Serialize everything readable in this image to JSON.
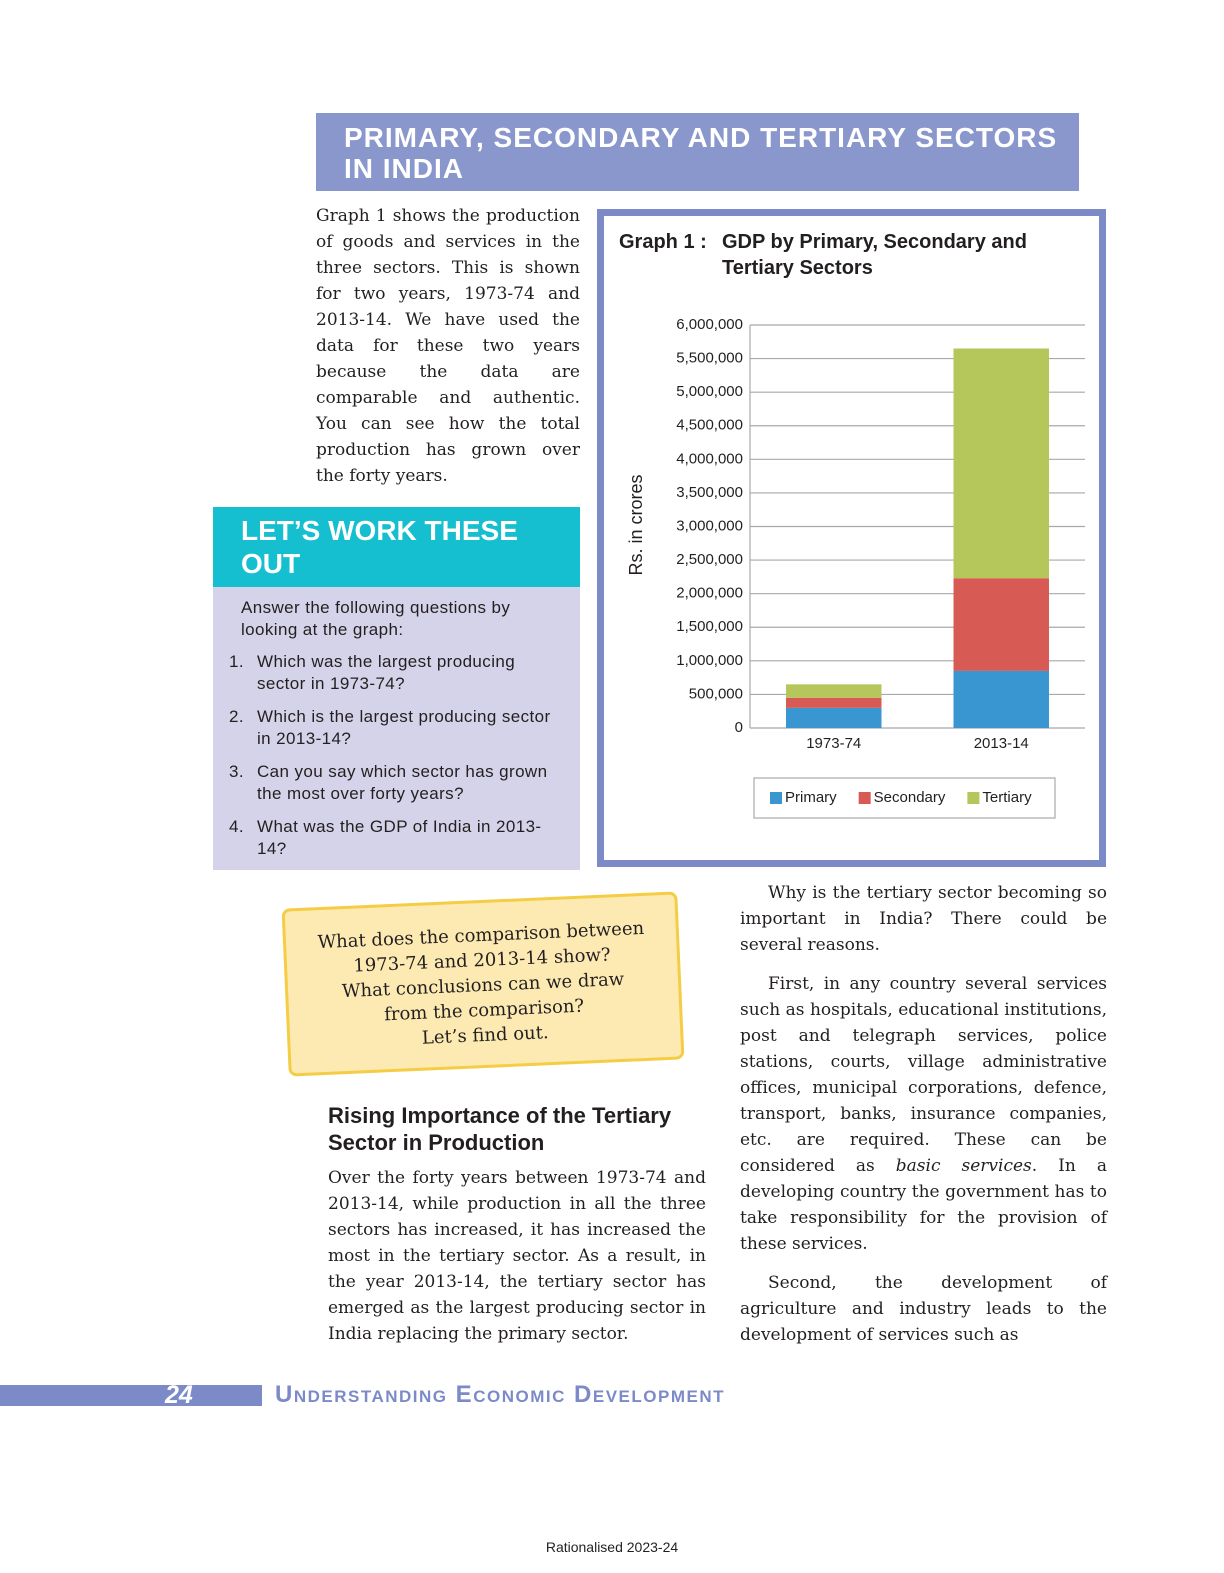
{
  "header": {
    "title": "PRIMARY, SECONDARY AND TERTIARY SECTORS IN INDIA"
  },
  "intro": "Graph 1 shows the production of goods and services in the three sectors. This is shown for two years, 1973-74 and 2013-14. We have used the data for these two years because the data are comparable and authentic. You can see how the total production has grown over the forty years.",
  "activity": {
    "title": "LET’S WORK THESE OUT",
    "prompt": "Answer the following questions by looking at the graph:",
    "questions": [
      {
        "number": "1.",
        "text": "Which was the largest producing sector in 1973-74?"
      },
      {
        "number": "2.",
        "text": "Which is the largest producing sector in 2013-14?"
      },
      {
        "number": "3.",
        "text": "Can you say which sector has grown the most over forty years?"
      },
      {
        "number": "4.",
        "text": "What was the GDP of India in 2013-14?"
      }
    ]
  },
  "graph_label": "Graph 1 :",
  "chart_data": {
    "type": "bar",
    "stacked": true,
    "title": "GDP by Primary, Secondary and Tertiary Sectors",
    "ylabel": "Rs. in crores",
    "categories": [
      "1973-74",
      "2013-14"
    ],
    "series": [
      {
        "name": "Primary",
        "color": "#3a96d0",
        "values": [
          300000,
          850000
        ]
      },
      {
        "name": "Secondary",
        "color": "#d85a55",
        "values": [
          150000,
          1380000
        ]
      },
      {
        "name": "Tertiary",
        "color": "#b5c65a",
        "values": [
          200000,
          3420000
        ]
      }
    ],
    "ylim": [
      0,
      6000000
    ],
    "yticks": [
      0,
      {
        "value": 500000,
        "label": "500,000"
      },
      {
        "value": 1000000,
        "label": "1,000,000"
      },
      {
        "value": 1500000,
        "label": "1,500,000"
      },
      {
        "value": 2000000,
        "label": "2,000,000"
      },
      {
        "value": 2500000,
        "label": "2,500,000"
      },
      {
        "value": 3000000,
        "label": "3,000,000"
      },
      {
        "value": 3500000,
        "label": "3,500,000"
      },
      {
        "value": 4000000,
        "label": "4,000,000"
      },
      {
        "value": 4500000,
        "label": "4,500,000"
      },
      {
        "value": 5000000,
        "label": "5,000,000"
      },
      {
        "value": 5500000,
        "label": "5,500,000"
      },
      {
        "value": 6000000,
        "label": "6,000,000"
      }
    ],
    "grid": true,
    "legend": "bottom"
  },
  "callout": {
    "lines": [
      "What does the comparison between",
      "1973-74 and 2013-14 show?",
      "What conclusions can we draw",
      "from the comparison?",
      "Let’s find out."
    ]
  },
  "section": {
    "heading": "Rising Importance of the Tertiary Sector in Production",
    "paragraph": "Over the forty years between 1973-74 and 2013-14, while production in all the three sectors has increased, it has increased the most in the tertiary sector. As a result, in the year 2013-14, the tertiary sector has emerged as the largest producing sector in India replacing the primary sector."
  },
  "right_column": {
    "paragraphs": [
      [
        "Why is the tertiary sector becoming so important in India? There could be several reasons."
      ],
      [
        "First, in any country several services such as hospitals, educational institutions, post and telegraph services, police stations, courts, village administrative offices, municipal corporations, defence, transport, banks, insurance companies, etc. are required. These can be considered as ",
        "basic services",
        ". In a developing country the government has to take responsibility for the provision of these services."
      ],
      [
        "Second, the development of agriculture and industry leads to the development of services such as"
      ]
    ]
  },
  "footer": {
    "page_number": "24",
    "book_title": "Understanding Economic Development",
    "note": "Rationalised 2023-24"
  }
}
